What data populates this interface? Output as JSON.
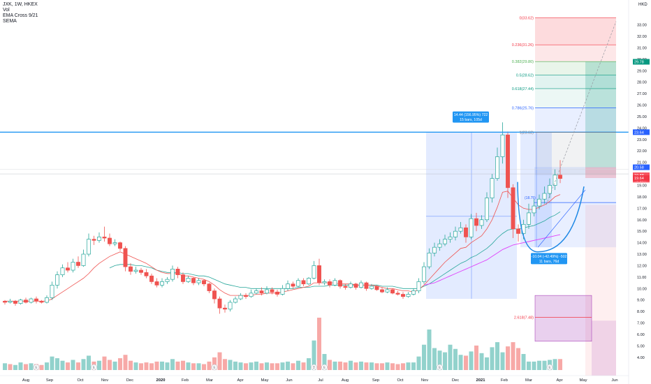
{
  "header": {
    "symbol_line": "JXK, 1W, HKEX",
    "indicators": [
      "Vol",
      "EMA Cross 9/21",
      "SEMA"
    ]
  },
  "currency": "HKD",
  "chart_data": {
    "type": "candlestick",
    "interval": "1W",
    "x_ticks": [
      "Aug",
      "Sep",
      "Oct",
      "Nov",
      "Dec",
      "2020",
      "Feb",
      "Mar",
      "Apr",
      "May",
      "Jun",
      "Jul",
      "Aug",
      "Sep",
      "Oct",
      "Nov",
      "Dec",
      "2021",
      "Feb",
      "Mar",
      "Apr",
      "May",
      "Jun"
    ],
    "y_ticks": [
      4.0,
      5.0,
      6.0,
      7.0,
      8.0,
      9.0,
      10.0,
      11.0,
      12.0,
      13.0,
      14.0,
      15.0,
      16.0,
      17.0,
      18.0,
      19.0,
      20.0,
      21.0,
      22.0,
      23.0,
      24.0,
      25.0,
      26.0,
      27.0,
      28.0,
      29.0,
      30.0,
      31.0,
      32.0,
      33.0
    ],
    "y_range": [
      3.5,
      34.5
    ],
    "candles": [
      [
        8.9,
        8.8,
        9.0,
        8.6
      ],
      [
        8.8,
        8.9,
        9.1,
        8.7
      ],
      [
        8.9,
        8.7,
        9.0,
        8.5
      ],
      [
        8.7,
        9.0,
        9.1,
        8.6
      ],
      [
        9.0,
        8.8,
        9.2,
        8.7
      ],
      [
        8.8,
        9.1,
        9.2,
        8.7
      ],
      [
        9.1,
        8.9,
        9.3,
        8.7
      ],
      [
        8.9,
        8.8,
        9.0,
        8.7
      ],
      [
        8.8,
        9.2,
        9.4,
        8.7
      ],
      [
        9.2,
        10.3,
        10.6,
        9.0
      ],
      [
        10.3,
        11.2,
        11.5,
        10.0
      ],
      [
        11.2,
        11.8,
        12.1,
        11.0
      ],
      [
        11.8,
        11.6,
        12.3,
        11.4
      ],
      [
        11.6,
        12.3,
        12.6,
        11.4
      ],
      [
        12.3,
        12.0,
        12.8,
        11.8
      ],
      [
        12.0,
        13.0,
        13.4,
        11.9
      ],
      [
        13.0,
        14.3,
        14.8,
        12.8
      ],
      [
        14.3,
        14.2,
        14.6,
        13.8
      ],
      [
        14.2,
        14.5,
        14.9,
        14.0
      ],
      [
        14.5,
        14.4,
        15.4,
        14.1
      ],
      [
        14.4,
        13.9,
        14.8,
        13.7
      ],
      [
        13.9,
        14.0,
        14.3,
        13.7
      ],
      [
        14.0,
        13.5,
        14.1,
        13.3
      ],
      [
        13.5,
        11.9,
        13.7,
        11.5
      ],
      [
        11.9,
        11.5,
        12.2,
        11.2
      ],
      [
        11.5,
        11.6,
        11.9,
        11.3
      ],
      [
        11.6,
        11.4,
        11.8,
        11.2
      ],
      [
        11.4,
        11.1,
        11.7,
        10.9
      ],
      [
        11.1,
        10.6,
        11.3,
        10.4
      ],
      [
        10.6,
        10.3,
        10.9,
        10.1
      ],
      [
        10.3,
        10.6,
        10.9,
        10.1
      ],
      [
        10.6,
        10.8,
        11.0,
        10.4
      ],
      [
        10.8,
        11.7,
        12.0,
        10.6
      ],
      [
        11.7,
        11.2,
        11.9,
        10.9
      ],
      [
        11.2,
        10.6,
        11.4,
        10.4
      ],
      [
        10.6,
        10.9,
        11.1,
        10.5
      ],
      [
        10.9,
        10.5,
        11.0,
        10.3
      ],
      [
        10.5,
        10.7,
        10.9,
        10.3
      ],
      [
        10.7,
        10.4,
        10.8,
        10.2
      ],
      [
        10.4,
        9.8,
        10.5,
        9.6
      ],
      [
        9.8,
        9.1,
        10.0,
        8.7
      ],
      [
        9.1,
        8.3,
        9.3,
        7.8
      ],
      [
        8.3,
        8.2,
        8.6,
        7.9
      ],
      [
        8.2,
        8.8,
        9.0,
        8.0
      ],
      [
        8.8,
        9.1,
        9.3,
        8.7
      ],
      [
        9.1,
        9.4,
        9.6,
        9.0
      ],
      [
        9.4,
        9.3,
        9.6,
        9.1
      ],
      [
        9.3,
        9.6,
        9.9,
        9.2
      ],
      [
        9.6,
        9.8,
        10.0,
        9.5
      ],
      [
        9.8,
        9.6,
        10.1,
        9.4
      ],
      [
        9.6,
        9.9,
        10.2,
        9.5
      ],
      [
        9.9,
        9.7,
        10.1,
        9.5
      ],
      [
        9.7,
        9.5,
        9.9,
        9.3
      ],
      [
        9.5,
        10.0,
        10.3,
        9.4
      ],
      [
        10.0,
        10.4,
        10.7,
        9.8
      ],
      [
        10.4,
        10.2,
        10.6,
        10.0
      ],
      [
        10.2,
        10.7,
        10.9,
        10.1
      ],
      [
        10.7,
        10.4,
        10.9,
        10.2
      ],
      [
        10.4,
        10.9,
        11.0,
        10.3
      ],
      [
        10.9,
        12.0,
        12.4,
        10.8
      ],
      [
        12.0,
        10.5,
        12.6,
        10.3
      ],
      [
        10.5,
        10.6,
        10.8,
        10.3
      ],
      [
        10.6,
        10.3,
        10.8,
        10.1
      ],
      [
        10.3,
        10.7,
        10.9,
        10.2
      ],
      [
        10.7,
        10.2,
        10.8,
        10.0
      ],
      [
        10.2,
        10.1,
        10.4,
        9.9
      ],
      [
        10.1,
        10.4,
        10.6,
        10.0
      ],
      [
        10.4,
        10.1,
        10.5,
        9.9
      ],
      [
        10.1,
        10.5,
        10.7,
        10.0
      ],
      [
        10.5,
        10.0,
        10.6,
        9.8
      ],
      [
        10.0,
        10.2,
        10.4,
        9.9
      ],
      [
        10.2,
        9.9,
        10.3,
        9.8
      ],
      [
        9.9,
        9.7,
        10.1,
        9.6
      ],
      [
        9.7,
        9.9,
        10.1,
        9.6
      ],
      [
        9.9,
        9.6,
        10.0,
        9.5
      ],
      [
        9.6,
        9.5,
        9.8,
        9.4
      ],
      [
        9.5,
        9.3,
        9.7,
        9.1
      ],
      [
        9.3,
        9.5,
        9.7,
        9.2
      ],
      [
        9.5,
        9.8,
        10.0,
        9.4
      ],
      [
        9.8,
        10.6,
        10.9,
        9.6
      ],
      [
        10.6,
        11.9,
        12.3,
        10.4
      ],
      [
        11.9,
        13.1,
        13.5,
        11.7
      ],
      [
        13.1,
        13.6,
        14.0,
        12.8
      ],
      [
        13.6,
        13.9,
        14.3,
        13.3
      ],
      [
        13.9,
        14.3,
        14.7,
        13.7
      ],
      [
        14.3,
        14.5,
        14.9,
        14.0
      ],
      [
        14.5,
        15.0,
        15.4,
        14.2
      ],
      [
        15.0,
        15.3,
        15.8,
        14.8
      ],
      [
        15.3,
        14.5,
        15.6,
        14.0
      ],
      [
        14.5,
        16.1,
        16.5,
        14.3
      ],
      [
        16.1,
        15.5,
        16.6,
        15.0
      ],
      [
        15.5,
        16.0,
        16.4,
        15.2
      ],
      [
        16.0,
        17.9,
        18.4,
        15.8
      ],
      [
        17.9,
        19.6,
        20.0,
        17.5
      ],
      [
        19.6,
        21.5,
        22.3,
        19.4
      ],
      [
        21.5,
        23.4,
        24.5,
        20.9
      ],
      [
        23.4,
        18.8,
        23.7,
        17.9
      ],
      [
        18.8,
        15.2,
        19.1,
        14.4
      ],
      [
        15.2,
        14.8,
        15.6,
        14.1
      ],
      [
        14.8,
        15.6,
        16.0,
        14.3
      ],
      [
        15.6,
        16.6,
        17.4,
        15.2
      ],
      [
        16.6,
        17.2,
        17.8,
        16.3
      ],
      [
        17.2,
        17.8,
        18.2,
        16.9
      ],
      [
        17.8,
        18.3,
        18.9,
        17.4
      ],
      [
        18.3,
        19.0,
        19.6,
        17.9
      ],
      [
        19.0,
        19.9,
        20.4,
        18.6
      ],
      [
        19.9,
        19.6,
        21.2,
        19.2
      ]
    ],
    "volume_colors": [
      "up",
      "down",
      "up",
      "up",
      "down",
      "up",
      "down",
      "down",
      "up",
      "up",
      "up",
      "up",
      "down",
      "up",
      "down",
      "up",
      "up",
      "down",
      "up",
      "down",
      "down",
      "up",
      "down",
      "down",
      "down",
      "up",
      "down",
      "down",
      "down",
      "down",
      "up",
      "up",
      "up",
      "down",
      "down",
      "up",
      "down",
      "up",
      "down",
      "down",
      "down",
      "down",
      "down",
      "up",
      "up",
      "up",
      "down",
      "up",
      "up",
      "down",
      "up",
      "down",
      "down",
      "up",
      "up",
      "down",
      "up",
      "down",
      "up",
      "up",
      "down",
      "up",
      "down",
      "up",
      "down",
      "down",
      "up",
      "down",
      "up",
      "down",
      "up",
      "down",
      "down",
      "up",
      "down",
      "down",
      "down",
      "up",
      "up",
      "up",
      "up",
      "up",
      "up",
      "up",
      "up",
      "up",
      "up",
      "up",
      "down",
      "up",
      "down",
      "up",
      "up",
      "up",
      "up",
      "up",
      "down",
      "down",
      "down",
      "up",
      "up",
      "up",
      "up",
      "up",
      "up",
      "up",
      "down"
    ],
    "volumes": [
      0.8,
      0.7,
      0.6,
      0.9,
      0.7,
      0.8,
      0.7,
      0.6,
      0.9,
      1.6,
      1.4,
      1.1,
      0.9,
      1.2,
      0.9,
      1.3,
      1.7,
      1.0,
      1.1,
      1.6,
      1.2,
      1.0,
      1.4,
      1.8,
      1.1,
      0.9,
      0.8,
      0.9,
      0.8,
      1.0,
      1.0,
      0.9,
      1.3,
      1.0,
      1.1,
      0.9,
      0.8,
      0.8,
      0.7,
      1.0,
      1.5,
      2.1,
      1.3,
      1.2,
      1.0,
      0.9,
      0.8,
      0.9,
      1.0,
      0.8,
      0.9,
      0.8,
      0.8,
      0.9,
      1.0,
      0.8,
      1.1,
      0.9,
      1.4,
      3.5,
      6.2,
      1.9,
      1.2,
      1.0,
      1.0,
      0.9,
      1.1,
      0.9,
      1.0,
      0.9,
      0.9,
      0.8,
      0.8,
      0.9,
      0.8,
      0.7,
      0.8,
      0.9,
      0.9,
      1.6,
      3.0,
      4.8,
      2.6,
      2.3,
      2.1,
      3.0,
      2.5,
      1.8,
      1.7,
      2.2,
      2.9,
      2.0,
      1.5,
      2.7,
      3.3,
      2.1,
      2.8,
      3.3,
      2.6,
      1.9,
      1.0,
      1.0,
      1.1,
      1.1,
      1.2,
      1.3,
      1.3
    ],
    "ema9": [
      8.9,
      8.9,
      8.9,
      8.9,
      8.9,
      8.9,
      8.9,
      8.9,
      8.9,
      9.1,
      9.4,
      9.7,
      10.0,
      10.3,
      10.6,
      10.9,
      11.3,
      11.8,
      12.2,
      12.5,
      12.8,
      13.0,
      13.2,
      13.0,
      12.8,
      12.6,
      12.4,
      12.2,
      11.9,
      11.6,
      11.4,
      11.3,
      11.3,
      11.3,
      11.1,
      11.1,
      11.0,
      10.9,
      10.8,
      10.6,
      10.3,
      9.9,
      9.6,
      9.4,
      9.4,
      9.4,
      9.4,
      9.4,
      9.5,
      9.5,
      9.6,
      9.6,
      9.6,
      9.7,
      9.8,
      9.9,
      10.0,
      10.1,
      10.2,
      10.5,
      10.5,
      10.5,
      10.5,
      10.5,
      10.4,
      10.4,
      10.4,
      10.3,
      10.3,
      10.3,
      10.3,
      10.2,
      10.1,
      10.0,
      10.0,
      9.9,
      9.8,
      9.8,
      9.7,
      9.9,
      10.3,
      10.8,
      11.3,
      11.8,
      12.3,
      12.7,
      13.1,
      13.5,
      13.6,
      14.0,
      14.3,
      14.6,
      15.2,
      16.0,
      17.1,
      18.4,
      18.5,
      17.9,
      17.3,
      17.0,
      16.9,
      16.9,
      17.1,
      17.3,
      17.6,
      18.0,
      18.2
    ],
    "ema21": [
      null,
      null,
      null,
      null,
      null,
      null,
      null,
      null,
      null,
      null,
      null,
      null,
      null,
      null,
      null,
      null,
      null,
      null,
      null,
      null,
      11.8,
      12.0,
      12.1,
      12.1,
      12.1,
      12.0,
      12.0,
      11.9,
      11.8,
      11.6,
      11.5,
      11.4,
      11.4,
      11.4,
      11.3,
      11.3,
      11.2,
      11.1,
      11.1,
      11.0,
      10.8,
      10.6,
      10.4,
      10.3,
      10.2,
      10.1,
      10.1,
      10.0,
      10.0,
      10.0,
      10.0,
      10.0,
      10.0,
      10.0,
      10.0,
      10.0,
      10.1,
      10.1,
      10.1,
      10.2,
      10.2,
      10.2,
      10.3,
      10.3,
      10.3,
      10.3,
      10.3,
      10.3,
      10.3,
      10.3,
      10.3,
      10.3,
      10.2,
      10.2,
      10.2,
      10.1,
      10.0,
      10.0,
      10.0,
      10.0,
      10.2,
      10.4,
      10.7,
      11.0,
      11.3,
      11.6,
      11.9,
      12.2,
      12.4,
      12.7,
      12.9,
      13.2,
      13.5,
      13.9,
      14.4,
      14.8,
      15.1,
      15.2,
      15.2,
      15.3,
      15.4,
      15.5,
      15.7,
      15.9,
      16.2,
      16.4,
      16.7
    ],
    "sema": [
      null,
      null,
      null,
      null,
      null,
      null,
      null,
      null,
      null,
      null,
      null,
      null,
      null,
      null,
      null,
      null,
      null,
      null,
      null,
      null,
      null,
      null,
      null,
      null,
      null,
      null,
      null,
      null,
      null,
      null,
      null,
      null,
      null,
      null,
      null,
      null,
      null,
      null,
      null,
      null,
      null,
      null,
      null,
      null,
      null,
      null,
      null,
      null,
      null,
      null,
      null,
      null,
      null,
      null,
      null,
      null,
      null,
      null,
      null,
      null,
      null,
      null,
      null,
      null,
      null,
      null,
      null,
      null,
      null,
      null,
      null,
      null,
      null,
      null,
      null,
      null,
      null,
      null,
      null,
      null,
      10.3,
      10.4,
      10.5,
      10.7,
      10.9,
      11.1,
      11.3,
      11.5,
      11.7,
      11.9,
      12.1,
      12.3,
      12.5,
      12.8,
      13.1,
      13.4,
      13.6,
      13.8,
      13.9,
      14.0,
      14.1,
      14.2,
      14.3,
      14.4,
      14.5,
      14.6,
      14.7
    ],
    "fib_levels": [
      {
        "label": "0(33.62)",
        "price": 33.62,
        "color": "#f23645"
      },
      {
        "label": "0.236(31.26)",
        "price": 31.26,
        "color": "#f23645"
      },
      {
        "label": "0.382(29.80)",
        "price": 29.8,
        "color": "#4caf50"
      },
      {
        "label": "0.5(28.62)",
        "price": 28.62,
        "color": "#089981"
      },
      {
        "label": "0.618(27.44)",
        "price": 27.44,
        "color": "#089981"
      },
      {
        "label": "0.786(25.76)",
        "price": 25.76,
        "color": "#2962ff"
      },
      {
        "label": "1(23.62)",
        "price": 23.62,
        "color": "#787b86"
      },
      {
        "label": "2.618(7.48)",
        "price": 7.48,
        "color": "#f23645"
      }
    ],
    "horizontal_line": 23.64,
    "measure_up": {
      "line1": "14.44 (156.95%) 722",
      "line2": "15 bars, 105d"
    },
    "measure_down": {
      "line1": "-10.04 (-42.49%) -502",
      "line2": "11 bars, 76d"
    },
    "mid_label": "(18.75)",
    "price_tags": [
      {
        "text": "29.78",
        "price": 29.78,
        "bg": "#089981"
      },
      {
        "text": "23.64",
        "price": 23.64,
        "bg": "#2962ff"
      },
      {
        "text": "20.58",
        "price": 20.58,
        "bg": "#2962ff"
      },
      {
        "text": "19.88",
        "price": 19.88,
        "bg": "#f7525f"
      },
      {
        "text": "4d 13h",
        "price": 19.5,
        "bg": "#f7525f"
      },
      {
        "text": "19.64",
        "price": 19.64,
        "bg": "#f23645"
      }
    ],
    "volume_e_marks": [
      6,
      17,
      40,
      61,
      83,
      104
    ],
    "volume_d_marks": [
      59
    ]
  }
}
